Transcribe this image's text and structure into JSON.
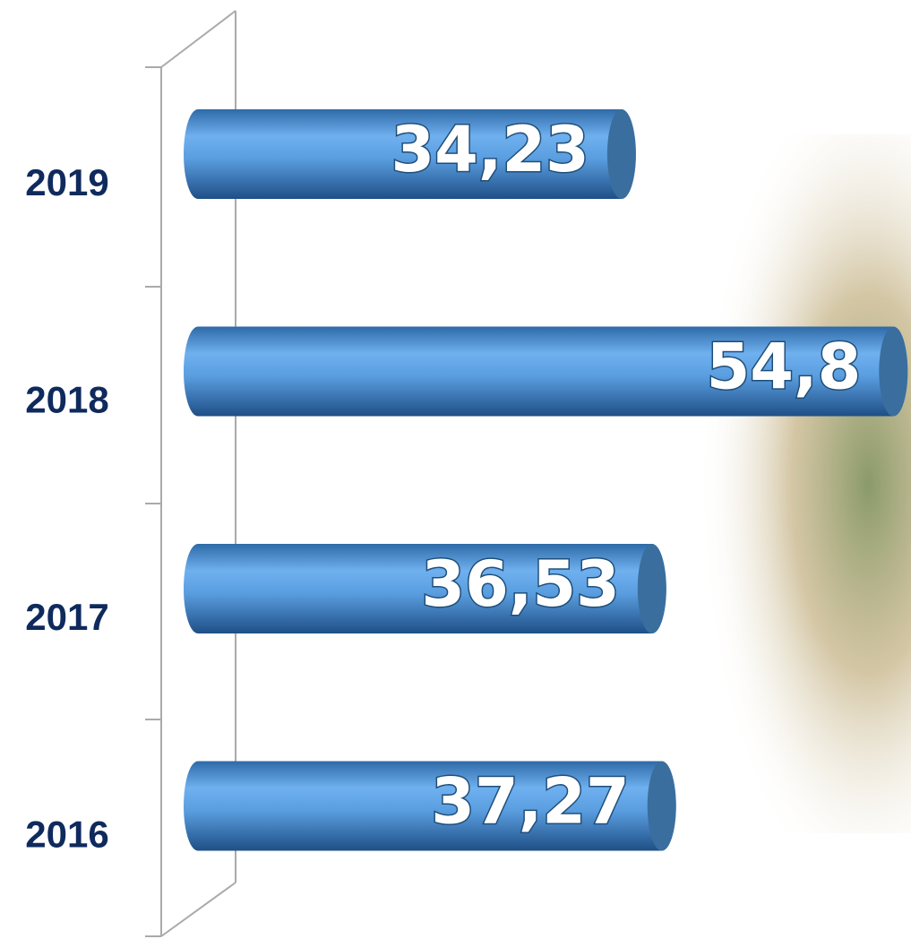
{
  "chart_data": {
    "type": "bar",
    "orientation": "horizontal",
    "categories": [
      "2019",
      "2018",
      "2017",
      "2016"
    ],
    "values": [
      34.23,
      54.8,
      36.53,
      37.27
    ],
    "value_labels": [
      "34,23",
      "54,8",
      "36,53",
      "37,27"
    ],
    "color": "#5b9bd5"
  }
}
